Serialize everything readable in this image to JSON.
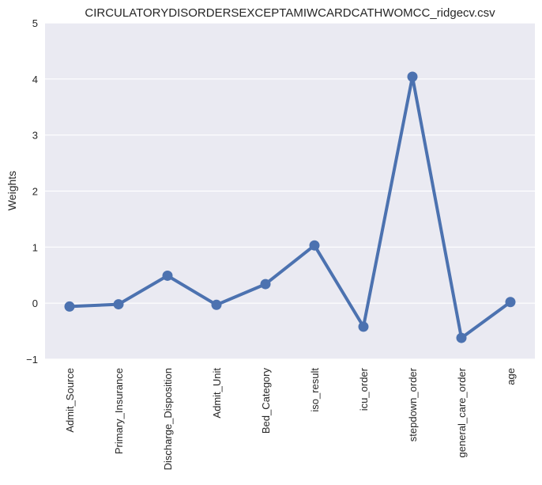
{
  "chart_data": {
    "type": "line",
    "title": "CIRCULATORYDISORDERSEXCEPTAMIWCARDCATHWOMCC_ridgecv.csv",
    "xlabel": "",
    "ylabel": "Weights",
    "ylim": [
      -1,
      5
    ],
    "yticks": [
      -1,
      0,
      1,
      2,
      3,
      4,
      5
    ],
    "ytick_labels": [
      "−1",
      "0",
      "1",
      "2",
      "3",
      "4",
      "5"
    ],
    "grid": true,
    "categories": [
      "Admit_Source",
      "Primary_Insurance",
      "Discharge_Disposition",
      "Admit_Unit",
      "Bed_Category",
      "iso_result",
      "icu_order",
      "stepdown_order",
      "general_care_order",
      "age"
    ],
    "series": [
      {
        "values": [
          -0.06,
          -0.02,
          0.49,
          -0.03,
          0.34,
          1.03,
          -0.42,
          4.04,
          -0.62,
          0.02
        ],
        "color": "#4c72b0"
      }
    ],
    "colors": {
      "background": "#eaeaf2",
      "grid": "#ffffff",
      "line": "#4c72b0"
    }
  }
}
